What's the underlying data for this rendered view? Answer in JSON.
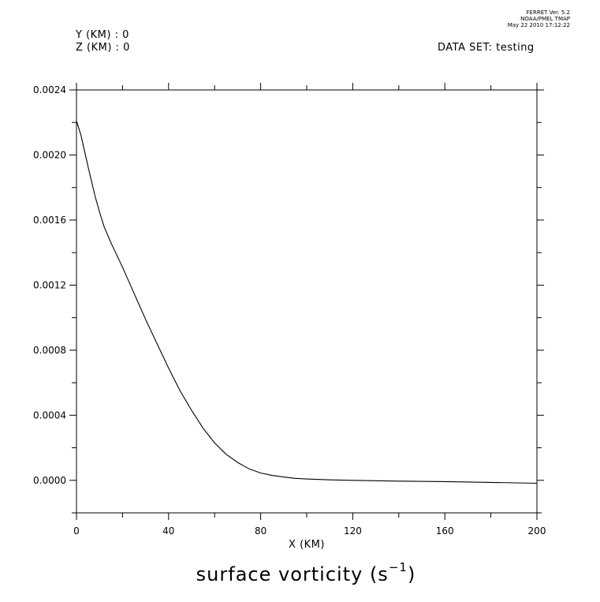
{
  "header": {
    "y_label": "Y (KM) : 0",
    "z_label": "Z (KM) : 0",
    "dataset": "DATA SET: testing"
  },
  "stamp": {
    "line1": "FERRET Ver. 5.2",
    "line2": "NOAA/PMEL TMAP",
    "line3": "May 22 2010 17:12:22"
  },
  "title": {
    "text": "surface vorticity (s",
    "superscript": "−1",
    "close": ")"
  },
  "chart_data": {
    "type": "line",
    "xlabel": "X (KM)",
    "ylabel": "",
    "xlim": [
      0,
      200
    ],
    "ylim": [
      -0.0002,
      0.0024
    ],
    "x_ticks": [
      0,
      40,
      80,
      120,
      160,
      200
    ],
    "y_ticks": [
      "0.0000",
      "0.0004",
      "0.0008",
      "0.0012",
      "0.0016",
      "0.0020",
      "0.0024"
    ],
    "y_tick_values": [
      0.0,
      0.0004,
      0.0008,
      0.0012,
      0.0016,
      0.002,
      0.0024
    ],
    "grid": false,
    "series": [
      {
        "x": [
          0,
          2,
          5,
          8,
          10,
          12,
          15,
          20,
          25,
          30,
          35,
          40,
          45,
          50,
          55,
          60,
          65,
          70,
          75,
          80,
          85,
          90,
          95,
          100,
          110,
          120,
          140,
          160,
          180,
          200
        ],
        "y": [
          0.00221,
          0.00212,
          0.00193,
          0.00175,
          0.00165,
          0.00156,
          0.00146,
          0.00131,
          0.00115,
          0.00099,
          0.00084,
          0.00069,
          0.00055,
          0.00043,
          0.00032,
          0.00023,
          0.00016,
          0.00011,
          7e-05,
          4.5e-05,
          3e-05,
          2e-05,
          1.2e-05,
          8e-06,
          3e-06,
          0.0,
          -5e-06,
          -8e-06,
          -1.3e-05,
          -1.8e-05
        ]
      }
    ]
  }
}
